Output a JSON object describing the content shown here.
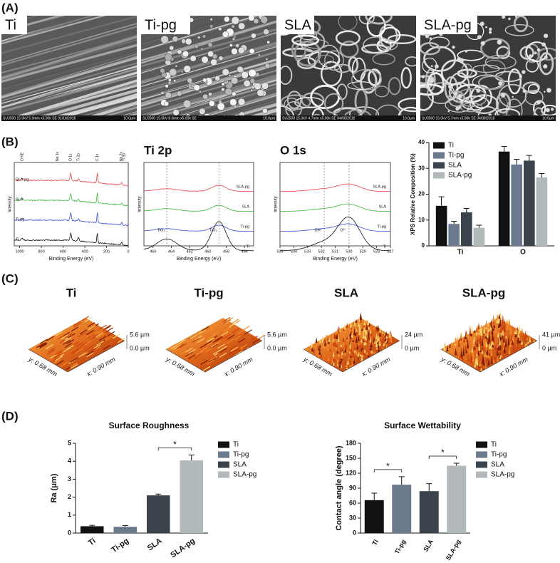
{
  "panel_labels": [
    "(A)",
    "(B)",
    "(C)",
    "(D)"
  ],
  "sem_images": [
    {
      "label": "Ti",
      "info": "SU3500 15.0kV 5.0mm x5.00k SE 01/18/2018",
      "scale": "10.0μm"
    },
    {
      "label": "Ti-pg",
      "info": "SU3500 15.0kV 8.0mm x5.00k SE",
      "scale": "10.0μm"
    },
    {
      "label": "SLA",
      "info": "SU3500 15.0kV 4.7mm x5.00k SE 04/08/2018",
      "scale": "10.0μm"
    },
    {
      "label": "SLA-pg",
      "info": "SU3500 15.0kV 5.7mm x5.00k SE 04/08/2018",
      "scale": "10.0μm"
    }
  ],
  "spectra": [
    {
      "ylabel": "Intensity",
      "xlabel": "Binding Energy (eV)",
      "xlim": [
        1050,
        0
      ],
      "xticks": [
        1000,
        800,
        600,
        400,
        200,
        0
      ],
      "traces": [
        {
          "name": "SLA-pg",
          "color": "#e8434a"
        },
        {
          "name": "SLA",
          "color": "#3db83d"
        },
        {
          "name": "Ti-pg",
          "color": "#3b4fd6"
        },
        {
          "name": "Ti",
          "color": "#111111"
        }
      ],
      "annotations": [
        "O KE",
        "Na 1s",
        "O 1s",
        "Ti 2p",
        "C 1s",
        "Na 2s",
        "Ti 3p"
      ]
    },
    {
      "title": "Ti 2p",
      "ylabel": "Intensity",
      "xlabel": "Binding Energy (eV)",
      "xlim": [
        467,
        455
      ],
      "xticks": [
        466,
        464,
        462,
        460,
        458,
        456
      ],
      "traces": [
        {
          "name": "SLA-pg",
          "color": "#e8434a"
        },
        {
          "name": "SLA",
          "color": "#3db83d"
        },
        {
          "name": "Ti-pg",
          "color": "#3b4fd6"
        },
        {
          "name": "Ti",
          "color": "#111111"
        }
      ],
      "annotations": [
        "TiO₂",
        "TiO₂"
      ]
    },
    {
      "title": "O 1s",
      "ylabel": "Intensity",
      "xlabel": "Binding Energy (eV)",
      "xlim": [
        535,
        527
      ],
      "xticks": [
        535,
        534,
        533,
        532,
        531,
        530,
        529,
        528,
        527
      ],
      "traces": [
        {
          "name": "SLA-pg",
          "color": "#e8434a"
        },
        {
          "name": "SLA",
          "color": "#3db83d"
        },
        {
          "name": "Ti-pg",
          "color": "#3b4fd6"
        },
        {
          "name": "Ti",
          "color": "#111111"
        }
      ],
      "annotations": [
        "OH⁻",
        "O²⁻"
      ]
    }
  ],
  "afm_images": [
    {
      "label": "Ti",
      "z_max": "5.6 µm",
      "z_min": "0.0 µm",
      "y_axis": "y: 0.68 mm",
      "x_axis": "x: 0.90 mm"
    },
    {
      "label": "Ti-pg",
      "z_max": "5.6 µm",
      "z_min": "0.0 µm",
      "y_axis": "y: 0.68 mm",
      "x_axis": "x: 0.90 mm"
    },
    {
      "label": "SLA",
      "z_max": "24 µm",
      "z_min": "0 µm",
      "y_axis": "y: 0.68 mm",
      "x_axis": "x: 0.90 mm"
    },
    {
      "label": "SLA-pg",
      "z_max": "41 µm",
      "z_min": "0 µm",
      "y_axis": "y: 0.68 mm",
      "x_axis": "x: 0.90 mm"
    }
  ],
  "chart_data": [
    {
      "type": "grouped-bar",
      "ylabel": "XPS Relative Composition (%)",
      "categories": [
        "Ti",
        "O"
      ],
      "series": [
        {
          "name": "Ti",
          "color": "#111111",
          "values": [
            15.5,
            36.5
          ],
          "errors": [
            3.5,
            2
          ]
        },
        {
          "name": "Ti-pg",
          "color": "#6c7a8d",
          "values": [
            8.5,
            31.5
          ],
          "errors": [
            1,
            2
          ]
        },
        {
          "name": "SLA",
          "color": "#3b444c",
          "values": [
            13,
            33
          ],
          "errors": [
            1.5,
            2
          ]
        },
        {
          "name": "SLA-pg",
          "color": "#b2b9bb",
          "values": [
            7,
            26.5
          ],
          "errors": [
            1,
            1.5
          ]
        }
      ],
      "ylim": [
        0,
        40
      ],
      "yticks": [
        0,
        10,
        20,
        30,
        40
      ],
      "legend": "top-left"
    },
    {
      "type": "bar",
      "title": "Surface Roughness",
      "ylabel": "Ra (μm)",
      "categories": [
        "Ti",
        "Ti-pg",
        "SLA",
        "SLA-pg"
      ],
      "values": [
        0.38,
        0.35,
        2.1,
        4.05
      ],
      "errors": [
        0.05,
        0.07,
        0.07,
        0.3
      ],
      "colors": [
        "#111111",
        "#6c7a8d",
        "#3b444c",
        "#b2b9bb"
      ],
      "ylim": [
        0,
        5
      ],
      "yticks": [
        0,
        1,
        2,
        3,
        4,
        5
      ],
      "significance": [
        {
          "from": "SLA",
          "to": "SLA-pg",
          "label": "*"
        }
      ],
      "legend": "right"
    },
    {
      "type": "bar",
      "title": "Surface Wettability",
      "ylabel": "Contact angle (degree)",
      "categories": [
        "Ti",
        "Ti-pg",
        "SLA",
        "SLA-pg"
      ],
      "values": [
        66,
        97,
        84,
        135
      ],
      "errors": [
        14,
        16,
        15,
        5
      ],
      "colors": [
        "#111111",
        "#6c7a8d",
        "#3b444c",
        "#b2b9bb"
      ],
      "ylim": [
        0,
        180
      ],
      "yticks": [
        0,
        30,
        60,
        90,
        120,
        150,
        180
      ],
      "significance": [
        {
          "from": "Ti",
          "to": "Ti-pg",
          "label": "*"
        },
        {
          "from": "SLA",
          "to": "SLA-pg",
          "label": "*"
        }
      ],
      "legend": "right"
    }
  ]
}
